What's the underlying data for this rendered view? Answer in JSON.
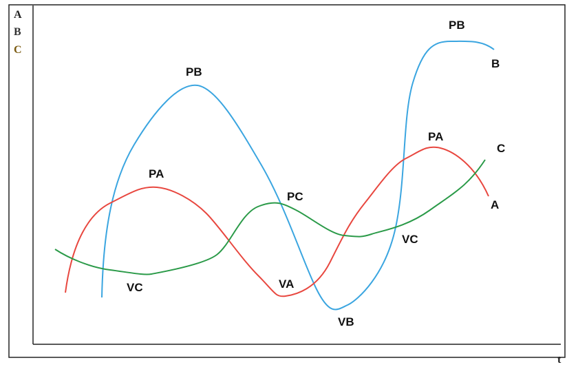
{
  "axis_labels": {
    "y": [
      "A",
      "B",
      "C"
    ],
    "x": "t"
  },
  "curve_labels": [
    "PB",
    "PB",
    "B",
    "PA",
    "PA",
    "A",
    "C",
    "PC",
    "VC",
    "VC",
    "VA",
    "VB"
  ]
}
